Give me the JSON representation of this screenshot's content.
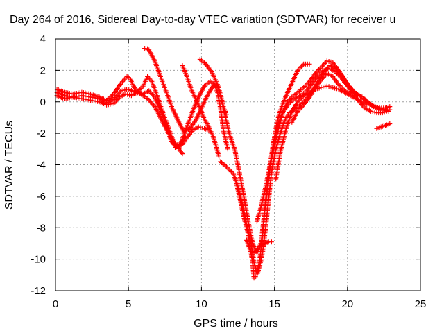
{
  "chart_data": {
    "type": "scatter",
    "title": "Day 264 of 2016, Sidereal Day-to-day VTEC variation (SDTVAR) for receiver u",
    "xlabel": "GPS time / hours",
    "ylabel": "SDTVAR / TECUs",
    "xlim": [
      0,
      25
    ],
    "ylim": [
      -12,
      4
    ],
    "xticks": [
      0,
      5,
      10,
      15,
      20,
      25
    ],
    "yticks": [
      4,
      2,
      0,
      -2,
      -4,
      -6,
      -8,
      -10,
      -12
    ],
    "grid": true,
    "marker": "+",
    "color": "#ff0000",
    "series": [
      {
        "points": [
          [
            0.1,
            0.8
          ],
          [
            0.6,
            0.6
          ],
          [
            1.2,
            0.5
          ],
          [
            1.8,
            0.6
          ],
          [
            2.4,
            0.5
          ],
          [
            3.0,
            0.3
          ],
          [
            3.5,
            0.1
          ],
          [
            4.0,
            0.5
          ],
          [
            4.5,
            1.2
          ],
          [
            4.9,
            1.6
          ],
          [
            5.1,
            1.5
          ],
          [
            5.4,
            0.9
          ],
          [
            5.8,
            0.5
          ],
          [
            6.2,
            0.3
          ],
          [
            6.8,
            -0.3
          ],
          [
            7.3,
            -1.2
          ],
          [
            7.8,
            -2.1
          ],
          [
            8.2,
            -2.7
          ],
          [
            8.6,
            -2.8
          ],
          [
            9.0,
            -2.3
          ],
          [
            9.4,
            -1.8
          ],
          [
            9.8,
            -1.6
          ],
          [
            10.2,
            -1.7
          ],
          [
            10.5,
            -1.8
          ]
        ]
      },
      {
        "points": [
          [
            0.1,
            0.6
          ],
          [
            0.6,
            0.4
          ],
          [
            1.2,
            0.3
          ],
          [
            1.8,
            0.4
          ],
          [
            2.4,
            0.3
          ],
          [
            3.0,
            0.2
          ],
          [
            3.5,
            -0.1
          ],
          [
            4.0,
            0.2
          ],
          [
            4.5,
            0.7
          ],
          [
            5.0,
            0.8
          ],
          [
            5.5,
            0.6
          ],
          [
            6.0,
            0.5
          ],
          [
            6.4,
            0.7
          ],
          [
            6.8,
            0.3
          ],
          [
            7.2,
            -0.5
          ],
          [
            7.6,
            -1.6
          ],
          [
            7.9,
            -2.4
          ],
          [
            8.2,
            -2.9
          ],
          [
            8.5,
            -2.8
          ],
          [
            8.9,
            -2.2
          ]
        ]
      },
      {
        "points": [
          [
            0.1,
            0.4
          ],
          [
            0.6,
            0.2
          ],
          [
            1.2,
            0.3
          ],
          [
            1.8,
            0.2
          ],
          [
            2.4,
            0.1
          ],
          [
            3.0,
            0.0
          ],
          [
            3.5,
            -0.2
          ],
          [
            4.0,
            -0.1
          ],
          [
            4.4,
            0.3
          ],
          [
            4.8,
            0.5
          ],
          [
            5.2,
            0.4
          ],
          [
            5.6,
            0.6
          ],
          [
            6.0,
            1.0
          ],
          [
            6.3,
            1.6
          ],
          [
            6.6,
            1.3
          ],
          [
            7.0,
            0.3
          ],
          [
            7.4,
            -0.8
          ],
          [
            7.8,
            -1.8
          ],
          [
            8.1,
            -2.6
          ],
          [
            8.4,
            -2.9
          ],
          [
            8.7,
            -3.3
          ]
        ]
      },
      {
        "points": [
          [
            6.1,
            3.4
          ],
          [
            6.4,
            3.3
          ],
          [
            6.8,
            2.6
          ],
          [
            7.2,
            1.6
          ],
          [
            7.6,
            0.6
          ],
          [
            8.0,
            -0.4
          ],
          [
            8.4,
            -1.2
          ],
          [
            8.8,
            -1.9
          ],
          [
            9.2,
            -1.7
          ],
          [
            9.6,
            -1.2
          ],
          [
            10.0,
            -0.4
          ],
          [
            10.4,
            0.4
          ],
          [
            10.8,
            1.0
          ],
          [
            11.1,
            1.1
          ],
          [
            11.3,
            0.5
          ],
          [
            11.5,
            -0.3
          ],
          [
            11.7,
            -0.8
          ]
        ]
      },
      {
        "points": [
          [
            8.6,
            -2.6
          ],
          [
            9.0,
            -1.6
          ],
          [
            9.4,
            -0.6
          ],
          [
            9.8,
            0.3
          ],
          [
            10.2,
            1.0
          ],
          [
            10.6,
            1.3
          ],
          [
            10.9,
            1.1
          ],
          [
            11.1,
            0.6
          ],
          [
            11.3,
            -0.4
          ],
          [
            11.5,
            -1.8
          ],
          [
            11.8,
            -3.0
          ]
        ]
      },
      {
        "points": [
          [
            8.7,
            2.3
          ],
          [
            9.0,
            1.6
          ],
          [
            9.3,
            0.8
          ],
          [
            9.6,
            0.2
          ],
          [
            9.9,
            -0.4
          ],
          [
            10.2,
            -1.1
          ],
          [
            10.5,
            -1.6
          ],
          [
            10.8,
            -2.2
          ],
          [
            11.0,
            -2.8
          ],
          [
            11.2,
            -3.5
          ]
        ]
      },
      {
        "points": [
          [
            9.9,
            2.7
          ],
          [
            10.3,
            2.4
          ],
          [
            10.7,
            1.9
          ],
          [
            11.0,
            1.3
          ],
          [
            11.3,
            0.4
          ],
          [
            11.6,
            -0.8
          ],
          [
            11.9,
            -2.0
          ],
          [
            12.3,
            -3.1
          ],
          [
            12.6,
            -4.5
          ],
          [
            12.9,
            -6.0
          ],
          [
            13.2,
            -7.6
          ],
          [
            13.5,
            -9.0
          ],
          [
            13.8,
            -9.6
          ],
          [
            14.1,
            -8.9
          ],
          [
            14.3,
            -7.2
          ],
          [
            14.6,
            -5.0
          ],
          [
            14.9,
            -2.8
          ],
          [
            15.2,
            -1.2
          ],
          [
            15.5,
            -0.3
          ],
          [
            15.8,
            0.4
          ],
          [
            16.2,
            1.2
          ],
          [
            16.6,
            2.0
          ],
          [
            17.0,
            2.4
          ],
          [
            17.4,
            2.4
          ]
        ]
      },
      {
        "points": [
          [
            11.3,
            -3.8
          ],
          [
            11.8,
            -4.2
          ],
          [
            12.2,
            -4.6
          ],
          [
            12.5,
            -5.4
          ],
          [
            12.8,
            -6.5
          ],
          [
            13.1,
            -7.8
          ],
          [
            13.4,
            -9.0
          ],
          [
            13.6,
            -10.2
          ],
          [
            13.8,
            -10.9
          ],
          [
            14.0,
            -10.0
          ],
          [
            14.2,
            -8.4
          ],
          [
            14.4,
            -6.2
          ],
          [
            14.7,
            -4.0
          ],
          [
            15.0,
            -2.3
          ],
          [
            15.3,
            -1.3
          ],
          [
            15.6,
            -0.6
          ],
          [
            16.0,
            -0.1
          ],
          [
            16.4,
            0.2
          ],
          [
            16.8,
            0.4
          ],
          [
            17.2,
            0.7
          ],
          [
            17.6,
            1.2
          ],
          [
            18.0,
            1.7
          ],
          [
            18.4,
            2.0
          ],
          [
            18.8,
            2.1
          ],
          [
            19.2,
            1.9
          ],
          [
            19.6,
            1.5
          ],
          [
            20.0,
            1.0
          ],
          [
            20.5,
            0.6
          ],
          [
            21.0,
            0.3
          ],
          [
            21.5,
            -0.1
          ],
          [
            22.0,
            -0.4
          ],
          [
            22.5,
            -0.5
          ],
          [
            22.8,
            -0.6
          ]
        ]
      },
      {
        "points": [
          [
            12.3,
            -4.8
          ],
          [
            12.6,
            -6.0
          ],
          [
            12.9,
            -7.3
          ],
          [
            13.2,
            -8.4
          ],
          [
            13.5,
            -10.2
          ],
          [
            13.6,
            -11.2
          ],
          [
            13.8,
            -11.0
          ],
          [
            14.0,
            -10.4
          ],
          [
            14.2,
            -9.5
          ],
          [
            14.4,
            -8.0
          ],
          [
            14.6,
            -6.2
          ],
          [
            14.8,
            -4.5
          ],
          [
            15.1,
            -3.0
          ],
          [
            15.4,
            -2.0
          ],
          [
            15.7,
            -1.2
          ],
          [
            16.0,
            -0.7
          ],
          [
            16.4,
            -0.5
          ],
          [
            16.8,
            -0.2
          ],
          [
            17.2,
            0.2
          ],
          [
            17.6,
            0.7
          ],
          [
            18.0,
            1.3
          ],
          [
            18.4,
            1.9
          ],
          [
            18.8,
            2.3
          ],
          [
            19.2,
            2.1
          ],
          [
            19.6,
            1.7
          ],
          [
            20.0,
            1.1
          ],
          [
            20.4,
            0.5
          ],
          [
            20.8,
            0.0
          ],
          [
            21.2,
            -0.4
          ],
          [
            21.6,
            -0.6
          ],
          [
            22.0,
            -0.7
          ],
          [
            22.4,
            -0.7
          ],
          [
            22.8,
            -0.6
          ]
        ]
      },
      {
        "points": [
          [
            13.1,
            -8.8
          ],
          [
            13.4,
            -9.6
          ],
          [
            13.7,
            -9.5
          ],
          [
            14.0,
            -9.2
          ],
          [
            14.3,
            -9.0
          ],
          [
            14.6,
            -8.9
          ],
          [
            14.8,
            -8.9
          ]
        ]
      },
      {
        "points": [
          [
            13.8,
            -7.6
          ],
          [
            14.1,
            -6.6
          ],
          [
            14.4,
            -5.4
          ],
          [
            14.7,
            -4.0
          ],
          [
            15.0,
            -2.8
          ],
          [
            15.3,
            -1.6
          ],
          [
            15.6,
            -0.6
          ],
          [
            15.9,
            0.0
          ],
          [
            16.2,
            0.3
          ],
          [
            16.6,
            0.6
          ],
          [
            17.0,
            0.9
          ],
          [
            17.4,
            1.3
          ],
          [
            17.8,
            1.8
          ],
          [
            18.2,
            2.2
          ],
          [
            18.6,
            2.6
          ],
          [
            19.0,
            2.5
          ],
          [
            19.4,
            2.0
          ],
          [
            19.8,
            1.4
          ],
          [
            20.2,
            0.9
          ],
          [
            20.6,
            0.5
          ],
          [
            21.0,
            0.3
          ],
          [
            21.4,
            0.0
          ],
          [
            21.8,
            -0.3
          ],
          [
            22.2,
            -0.4
          ],
          [
            22.6,
            -0.5
          ],
          [
            22.9,
            -0.5
          ]
        ]
      },
      {
        "points": [
          [
            15.1,
            -4.9
          ],
          [
            15.4,
            -3.2
          ],
          [
            15.8,
            -1.7
          ],
          [
            16.2,
            -0.6
          ],
          [
            16.6,
            0.0
          ],
          [
            17.0,
            0.4
          ],
          [
            17.4,
            0.6
          ],
          [
            17.8,
            0.8
          ],
          [
            18.2,
            0.9
          ],
          [
            18.6,
            1.0
          ],
          [
            19.0,
            0.9
          ],
          [
            19.4,
            0.8
          ],
          [
            19.8,
            0.6
          ],
          [
            20.2,
            0.4
          ],
          [
            20.6,
            0.2
          ],
          [
            21.0,
            0.0
          ],
          [
            21.4,
            -0.2
          ],
          [
            21.8,
            -0.3
          ],
          [
            22.2,
            -0.4
          ],
          [
            22.6,
            -0.4
          ],
          [
            22.9,
            -0.3
          ]
        ]
      },
      {
        "points": [
          [
            16.2,
            -1.3
          ],
          [
            16.6,
            -0.6
          ],
          [
            17.0,
            -0.2
          ],
          [
            17.4,
            0.3
          ],
          [
            17.8,
            0.9
          ],
          [
            18.2,
            1.4
          ],
          [
            18.6,
            1.8
          ],
          [
            19.0,
            1.6
          ],
          [
            19.4,
            1.1
          ],
          [
            19.8,
            0.7
          ],
          [
            20.2,
            0.5
          ]
        ]
      },
      {
        "points": [
          [
            22.0,
            -1.7
          ],
          [
            22.3,
            -1.6
          ],
          [
            22.6,
            -1.5
          ],
          [
            22.9,
            -1.4
          ]
        ]
      }
    ]
  }
}
